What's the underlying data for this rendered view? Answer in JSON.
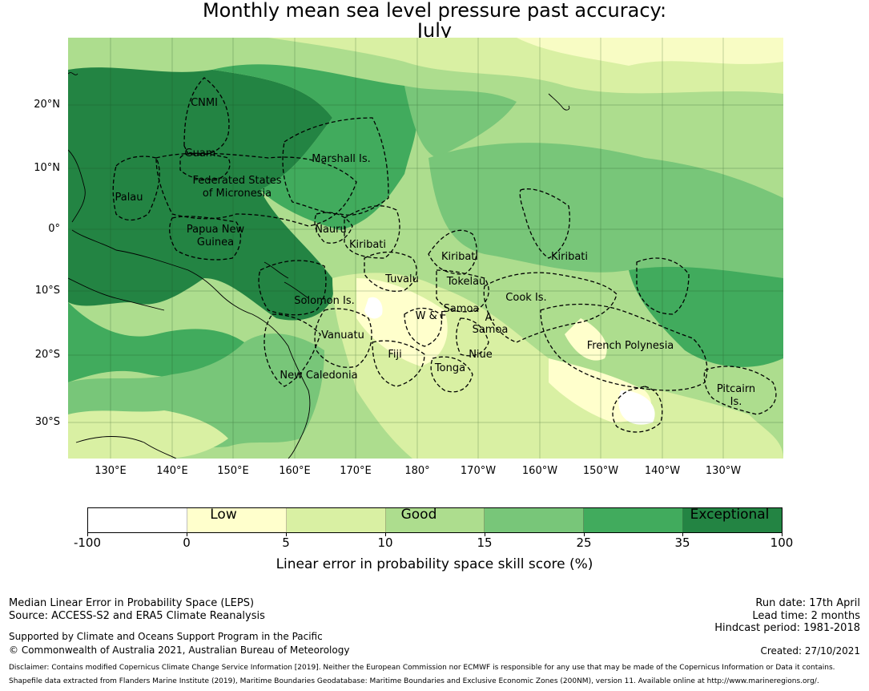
{
  "title": {
    "line1": "Monthly mean sea level pressure past accuracy:",
    "line2": "July"
  },
  "map": {
    "lat_labels": [
      "20°N",
      "10°N",
      "0°",
      "10°S",
      "20°S",
      "30°S"
    ],
    "lon_labels": [
      "130°E",
      "140°E",
      "150°E",
      "160°E",
      "170°E",
      "180°",
      "170°W",
      "160°W",
      "150°W",
      "140°W",
      "130°W"
    ],
    "regions": [
      {
        "name": "CNMI"
      },
      {
        "name": "Guam"
      },
      {
        "name": "Marshall Is."
      },
      {
        "name": "Palau"
      },
      {
        "name": "Federated States"
      },
      {
        "name": "of Micronesia"
      },
      {
        "name": "Papua New"
      },
      {
        "name": "Guinea"
      },
      {
        "name": "Nauru"
      },
      {
        "name": "Kiribati"
      },
      {
        "name": "Kiribati"
      },
      {
        "name": "Kiribati"
      },
      {
        "name": "Tuvalu"
      },
      {
        "name": "Tokelau"
      },
      {
        "name": "Solomon Is."
      },
      {
        "name": "Samoa"
      },
      {
        "name": "W & F"
      },
      {
        "name": "A."
      },
      {
        "name": "Samoa"
      },
      {
        "name": "Cook Is."
      },
      {
        "name": "Vanuatu"
      },
      {
        "name": "Fiji"
      },
      {
        "name": "Niue"
      },
      {
        "name": "French Polynesia"
      },
      {
        "name": "Tonga"
      },
      {
        "name": "New Caledonia"
      },
      {
        "name": "Pitcairn"
      },
      {
        "name": "Is."
      }
    ]
  },
  "legend": {
    "categories": [
      "Low",
      "Good",
      "Exceptional"
    ],
    "ticks": [
      "-100",
      "0",
      "5",
      "10",
      "15",
      "25",
      "35",
      "100"
    ],
    "colors": [
      "#ffffff",
      "#ffffcc",
      "#d9f0a3",
      "#addd8e",
      "#78c679",
      "#41ab5d",
      "#238443"
    ],
    "label": "Linear error in probability space skill score (%)"
  },
  "footer": {
    "left1": "Median Linear Error in Probability Space (LEPS)",
    "left2": "Source: ACCESS-S2 and ERA5 Climate Reanalysis",
    "left3": "Supported by Climate and Oceans Support Program in the Pacific",
    "left4": "© Commonwealth of Australia 2021, Australian Bureau of Meteorology",
    "right1": "Run date: 17th April",
    "right2": "Lead time: 2 months",
    "right3": "Hindcast period: 1981-2018",
    "right4": "Created: 27/10/2021",
    "disclaimer1": "Disclaimer: Contains modified Copernicus Climate Change Service Information [2019]. Neither the European Commission nor ECMWF is responsible for any use that may be made of the Copernicus Information or Data it contains.",
    "disclaimer2": "Shapefile data extracted from Flanders Marine Institute (2019), Maritime Boundaries Geodatabase: Maritime Boundaries and Exclusive Economic Zones (200NM), version 11. Available online at http://www.marineregions.org/."
  }
}
